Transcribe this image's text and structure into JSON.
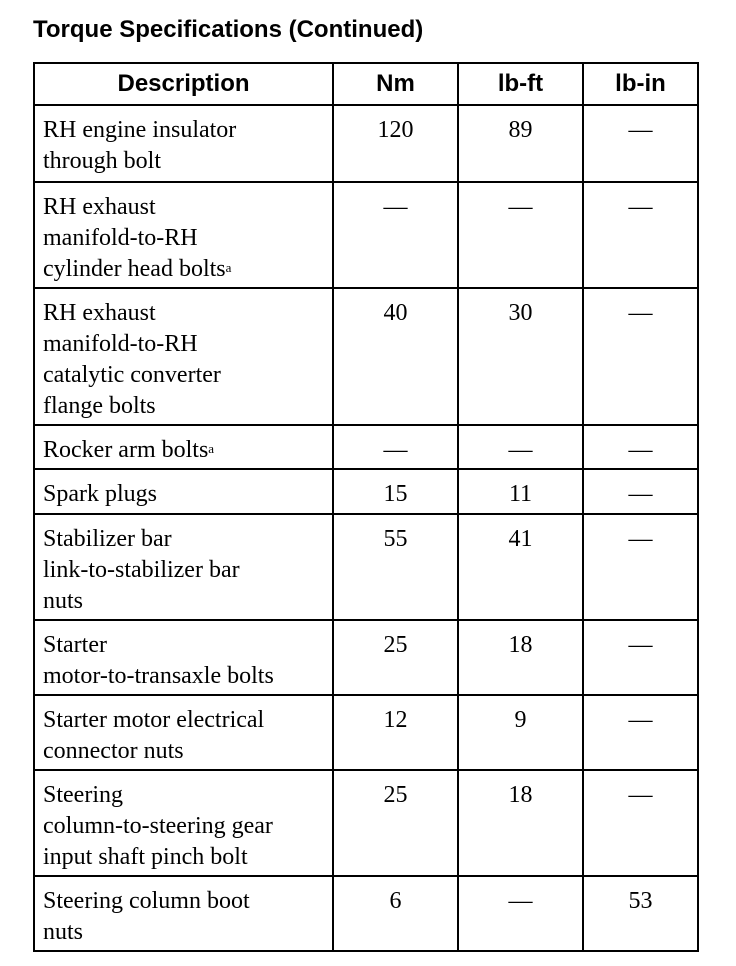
{
  "title": "Torque Specifications (Continued)",
  "columns": [
    "Description",
    "Nm",
    "lb-ft",
    "lb-in"
  ],
  "rows": [
    {
      "description": "RH engine insulator through bolt",
      "note": "",
      "nm": "120",
      "lbft": "89",
      "lbin": "—"
    },
    {
      "description": "RH exhaust manifold-to-RH cylinder head bolts",
      "note": "a",
      "nm": "—",
      "lbft": "—",
      "lbin": "—"
    },
    {
      "description": "RH exhaust manifold-to-RH catalytic converter flange bolts",
      "note": "",
      "nm": "40",
      "lbft": "30",
      "lbin": "—"
    },
    {
      "description": "Rocker arm bolts",
      "note": "a",
      "nm": "—",
      "lbft": "—",
      "lbin": "—"
    },
    {
      "description": "Spark plugs",
      "note": "",
      "nm": "15",
      "lbft": "11",
      "lbin": "—"
    },
    {
      "description": "Stabilizer bar link-to-stabilizer bar nuts",
      "note": "",
      "nm": "55",
      "lbft": "41",
      "lbin": "—"
    },
    {
      "description": "Starter motor-to-transaxle bolts",
      "note": "",
      "nm": "25",
      "lbft": "18",
      "lbin": "—"
    },
    {
      "description": "Starter motor electrical connector nuts",
      "note": "",
      "nm": "12",
      "lbft": "9",
      "lbin": "—"
    },
    {
      "description": "Steering column-to-steering gear input shaft pinch bolt",
      "note": "",
      "nm": "25",
      "lbft": "18",
      "lbin": "—"
    },
    {
      "description": "Steering column boot nuts",
      "note": "",
      "nm": "6",
      "lbft": "—",
      "lbin": "53"
    }
  ]
}
